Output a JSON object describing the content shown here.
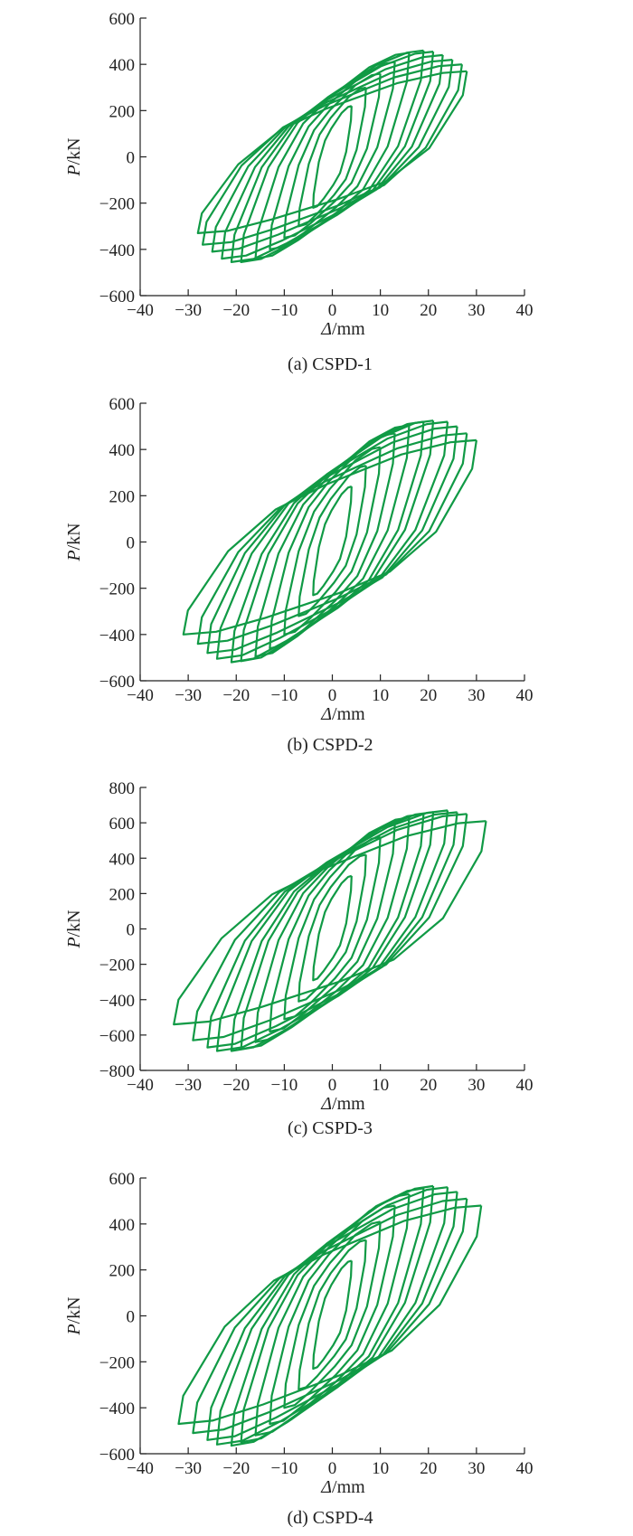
{
  "colors": {
    "curve": "#109a45",
    "axis": "#222222"
  },
  "chart_data": [
    {
      "type": "line",
      "caption": "(a) CSPD-1",
      "xlabel_symbol": "Δ",
      "xlabel_unit": "/mm",
      "ylabel_symbol": "P",
      "ylabel_unit": "/kN",
      "xlim": [
        -40,
        40
      ],
      "ylim": [
        -600,
        600
      ],
      "xticks": [
        -40,
        -30,
        -20,
        -10,
        0,
        10,
        20,
        30,
        40
      ],
      "yticks": [
        -600,
        -400,
        -200,
        0,
        200,
        400,
        600
      ],
      "hysteresis_loops": [
        {
          "dmax": 4,
          "dmin": -4,
          "pmax": 220,
          "pmin": -220
        },
        {
          "dmax": 7,
          "dmin": -7,
          "pmax": 300,
          "pmin": -300
        },
        {
          "dmax": 10,
          "dmin": -10,
          "pmax": 360,
          "pmin": -350
        },
        {
          "dmax": 13,
          "dmin": -13,
          "pmax": 410,
          "pmin": -400
        },
        {
          "dmax": 16,
          "dmin": -16,
          "pmax": 450,
          "pmin": -440
        },
        {
          "dmax": 19,
          "dmin": -19,
          "pmax": 460,
          "pmin": -455
        },
        {
          "dmax": 21,
          "dmin": -21,
          "pmax": 455,
          "pmin": -455
        },
        {
          "dmax": 23,
          "dmin": -23,
          "pmax": 440,
          "pmin": -440
        },
        {
          "dmax": 25,
          "dmin": -25,
          "pmax": 420,
          "pmin": -410
        },
        {
          "dmax": 27,
          "dmin": -27,
          "pmax": 400,
          "pmin": -380
        },
        {
          "dmax": 28,
          "dmin": -28,
          "pmax": 370,
          "pmin": -330
        }
      ]
    },
    {
      "type": "line",
      "caption": "(b) CSPD-2",
      "xlabel_symbol": "Δ",
      "xlabel_unit": "/mm",
      "ylabel_symbol": "P",
      "ylabel_unit": "/kN",
      "xlim": [
        -40,
        40
      ],
      "ylim": [
        -600,
        600
      ],
      "xticks": [
        -40,
        -30,
        -20,
        -10,
        0,
        10,
        20,
        30,
        40
      ],
      "yticks": [
        -600,
        -400,
        -200,
        0,
        200,
        400,
        600
      ],
      "hysteresis_loops": [
        {
          "dmax": 4,
          "dmin": -4,
          "pmax": 240,
          "pmin": -230
        },
        {
          "dmax": 7,
          "dmin": -7,
          "pmax": 330,
          "pmin": -320
        },
        {
          "dmax": 10,
          "dmin": -10,
          "pmax": 410,
          "pmin": -400
        },
        {
          "dmax": 13,
          "dmin": -13,
          "pmax": 470,
          "pmin": -460
        },
        {
          "dmax": 16,
          "dmin": -16,
          "pmax": 505,
          "pmin": -495
        },
        {
          "dmax": 19,
          "dmin": -19,
          "pmax": 520,
          "pmin": -515
        },
        {
          "dmax": 21,
          "dmin": -21,
          "pmax": 525,
          "pmin": -520
        },
        {
          "dmax": 24,
          "dmin": -24,
          "pmax": 520,
          "pmin": -505
        },
        {
          "dmax": 26,
          "dmin": -26,
          "pmax": 500,
          "pmin": -480
        },
        {
          "dmax": 28,
          "dmin": -28,
          "pmax": 470,
          "pmin": -440
        },
        {
          "dmax": 30,
          "dmin": -31,
          "pmax": 440,
          "pmin": -400
        }
      ]
    },
    {
      "type": "line",
      "caption": "(c) CSPD-3",
      "xlabel_symbol": "Δ",
      "xlabel_unit": "/mm",
      "ylabel_symbol": "P",
      "ylabel_unit": "/kN",
      "xlim": [
        -40,
        40
      ],
      "ylim": [
        -800,
        800
      ],
      "xticks": [
        -40,
        -30,
        -20,
        -10,
        0,
        10,
        20,
        30,
        40
      ],
      "yticks": [
        -800,
        -600,
        -400,
        -200,
        0,
        200,
        400,
        600,
        800
      ],
      "hysteresis_loops": [
        {
          "dmax": 4,
          "dmin": -4,
          "pmax": 300,
          "pmin": -290
        },
        {
          "dmax": 7,
          "dmin": -7,
          "pmax": 420,
          "pmin": -410
        },
        {
          "dmax": 10,
          "dmin": -10,
          "pmax": 520,
          "pmin": -510
        },
        {
          "dmax": 13,
          "dmin": -13,
          "pmax": 590,
          "pmin": -580
        },
        {
          "dmax": 16,
          "dmin": -16,
          "pmax": 630,
          "pmin": -640
        },
        {
          "dmax": 19,
          "dmin": -19,
          "pmax": 650,
          "pmin": -680
        },
        {
          "dmax": 21,
          "dmin": -21,
          "pmax": 660,
          "pmin": -690
        },
        {
          "dmax": 24,
          "dmin": -24,
          "pmax": 670,
          "pmin": -690
        },
        {
          "dmax": 26,
          "dmin": -26,
          "pmax": 660,
          "pmin": -670
        },
        {
          "dmax": 28,
          "dmin": -29,
          "pmax": 650,
          "pmin": -630
        },
        {
          "dmax": 32,
          "dmin": -33,
          "pmax": 610,
          "pmin": -540
        }
      ]
    },
    {
      "type": "line",
      "caption": "(d) CSPD-4",
      "xlabel_symbol": "Δ",
      "xlabel_unit": "/mm",
      "ylabel_symbol": "P",
      "ylabel_unit": "/kN",
      "xlim": [
        -40,
        40
      ],
      "ylim": [
        -600,
        600
      ],
      "xticks": [
        -40,
        -30,
        -20,
        -10,
        0,
        10,
        20,
        30,
        40
      ],
      "yticks": [
        -600,
        -400,
        -200,
        0,
        200,
        400,
        600
      ],
      "hysteresis_loops": [
        {
          "dmax": 4,
          "dmin": -4,
          "pmax": 240,
          "pmin": -230
        },
        {
          "dmax": 7,
          "dmin": -7,
          "pmax": 330,
          "pmin": -320
        },
        {
          "dmax": 10,
          "dmin": -10,
          "pmax": 410,
          "pmin": -400
        },
        {
          "dmax": 13,
          "dmin": -13,
          "pmax": 480,
          "pmin": -470
        },
        {
          "dmax": 16,
          "dmin": -16,
          "pmax": 530,
          "pmin": -520
        },
        {
          "dmax": 19,
          "dmin": -19,
          "pmax": 555,
          "pmin": -550
        },
        {
          "dmax": 21,
          "dmin": -21,
          "pmax": 565,
          "pmin": -565
        },
        {
          "dmax": 24,
          "dmin": -24,
          "pmax": 560,
          "pmin": -560
        },
        {
          "dmax": 26,
          "dmin": -26,
          "pmax": 540,
          "pmin": -540
        },
        {
          "dmax": 28,
          "dmin": -29,
          "pmax": 510,
          "pmin": -510
        },
        {
          "dmax": 31,
          "dmin": -32,
          "pmax": 480,
          "pmin": -470
        }
      ]
    }
  ]
}
